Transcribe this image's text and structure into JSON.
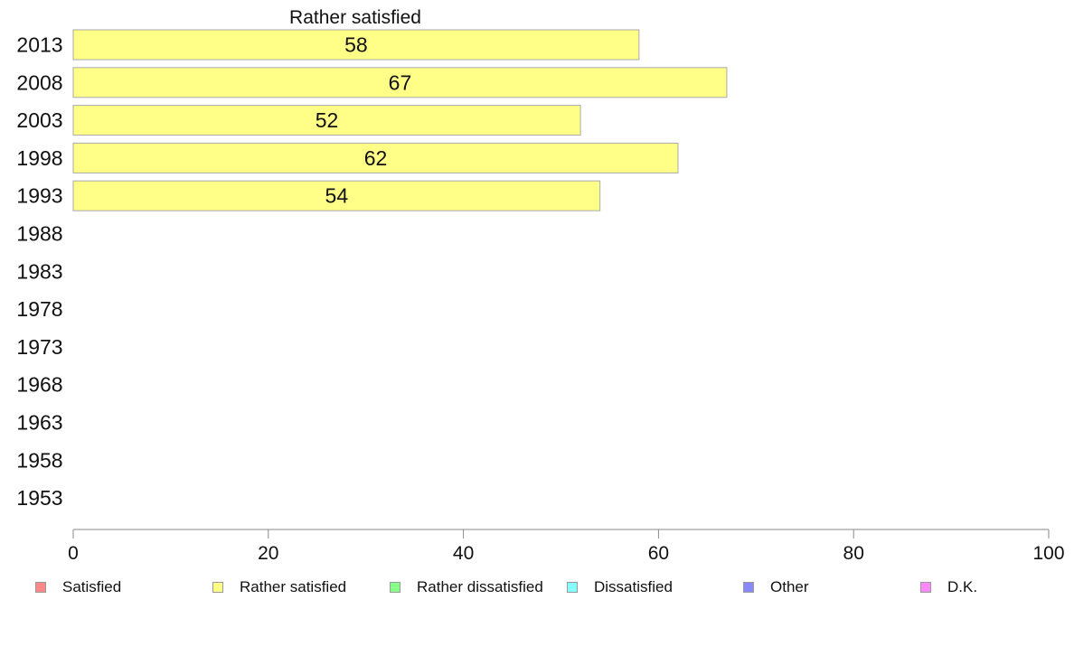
{
  "chart_data": {
    "type": "bar",
    "orientation": "horizontal",
    "title": "Rather satisfied",
    "categories": [
      "2013",
      "2008",
      "2003",
      "1998",
      "1993",
      "1988",
      "1983",
      "1978",
      "1973",
      "1968",
      "1963",
      "1958",
      "1953"
    ],
    "series": [
      {
        "name": "Rather satisfied",
        "color": "#ffff88",
        "values": [
          58,
          67,
          52,
          62,
          54,
          null,
          null,
          null,
          null,
          null,
          null,
          null,
          null
        ]
      }
    ],
    "xlim": [
      0,
      100
    ],
    "xticks": [
      0,
      20,
      40,
      60,
      80,
      100
    ],
    "grid": false,
    "legend_position": "bottom"
  },
  "legend": {
    "items": [
      {
        "label": "Satisfied",
        "color": "#ff8888"
      },
      {
        "label": "Rather satisfied",
        "color": "#ffff88"
      },
      {
        "label": "Rather dissatisfied",
        "color": "#88ff88"
      },
      {
        "label": "Dissatisfied",
        "color": "#88ffff"
      },
      {
        "label": "Other",
        "color": "#8888ff"
      },
      {
        "label": "D.K.",
        "color": "#ff88ff"
      }
    ]
  }
}
